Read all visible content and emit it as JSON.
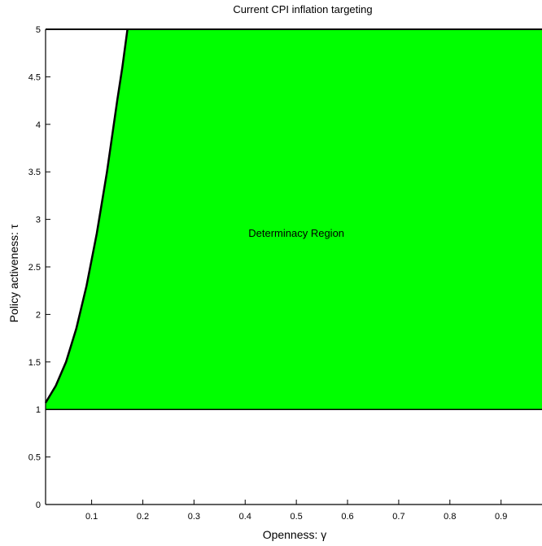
{
  "chart_data": {
    "type": "area",
    "title": "Current CPI inflation targeting",
    "xlabel": "Openness: γ",
    "ylabel": "Policy activeness: τ",
    "xlim": [
      0.01,
      0.98
    ],
    "ylim": [
      0,
      5
    ],
    "xticks": [
      0.1,
      0.2,
      0.3,
      0.4,
      0.5,
      0.6,
      0.7,
      0.8,
      0.9
    ],
    "xtick_labels": [
      "0.1",
      "0.2",
      "0.3",
      "0.4",
      "0.5",
      "0.6",
      "0.7",
      "0.8",
      "0.9"
    ],
    "yticks": [
      0,
      0.5,
      1,
      1.5,
      2,
      2.5,
      3,
      3.5,
      4,
      4.5,
      5
    ],
    "ytick_labels": [
      "0",
      "0.5",
      "1",
      "1.5",
      "2",
      "2.5",
      "3",
      "3.5",
      "4",
      "4.5",
      "5"
    ],
    "grid": false,
    "fill_color": "#00ff00",
    "boundary_curve": {
      "x": [
        0.01,
        0.03,
        0.05,
        0.07,
        0.09,
        0.11,
        0.13,
        0.15,
        0.16,
        0.17
      ],
      "y": [
        1.07,
        1.25,
        1.5,
        1.85,
        2.3,
        2.85,
        3.5,
        4.25,
        4.6,
        5.0
      ]
    },
    "lower_bound": 1.0,
    "annotations": [
      {
        "text": "Determinacy Region",
        "x": 0.5,
        "y": 2.85
      }
    ]
  }
}
